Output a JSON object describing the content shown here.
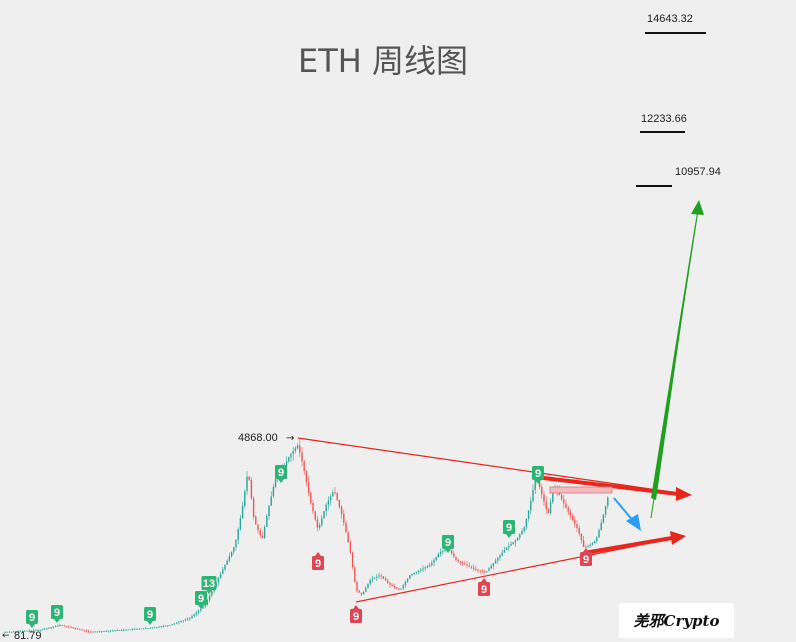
{
  "chart_data": {
    "type": "candlestick",
    "title": "ETH 周线图",
    "price_labels": {
      "high": "4868.00",
      "low": "81.79"
    },
    "targets": [
      "14643.32",
      "12233.66",
      "10957.94"
    ],
    "signals": [
      {
        "label": "9",
        "color": "#2bb673"
      },
      {
        "label": "9",
        "color": "#2bb673"
      },
      {
        "label": "9",
        "color": "#2bb673"
      },
      {
        "label": "9",
        "color": "#2bb673"
      },
      {
        "label": "13",
        "color": "#2bb673"
      },
      {
        "label": "9",
        "color": "#2bb673"
      },
      {
        "label": "9",
        "color": "#e04552"
      },
      {
        "label": "9",
        "color": "#e04552"
      },
      {
        "label": "9",
        "color": "#2bb673"
      },
      {
        "label": "9",
        "color": "#e04552"
      },
      {
        "label": "9",
        "color": "#2bb673"
      },
      {
        "label": "9",
        "color": "#2bb673"
      },
      {
        "label": "9",
        "color": "#e04552"
      }
    ],
    "colors": {
      "up": "#26a69a",
      "down": "#ef5350",
      "trendline": "#e8261b",
      "projection": "#1fa01f",
      "pullback": "#2a9df4"
    }
  },
  "watermark": "羌邪Crypto"
}
